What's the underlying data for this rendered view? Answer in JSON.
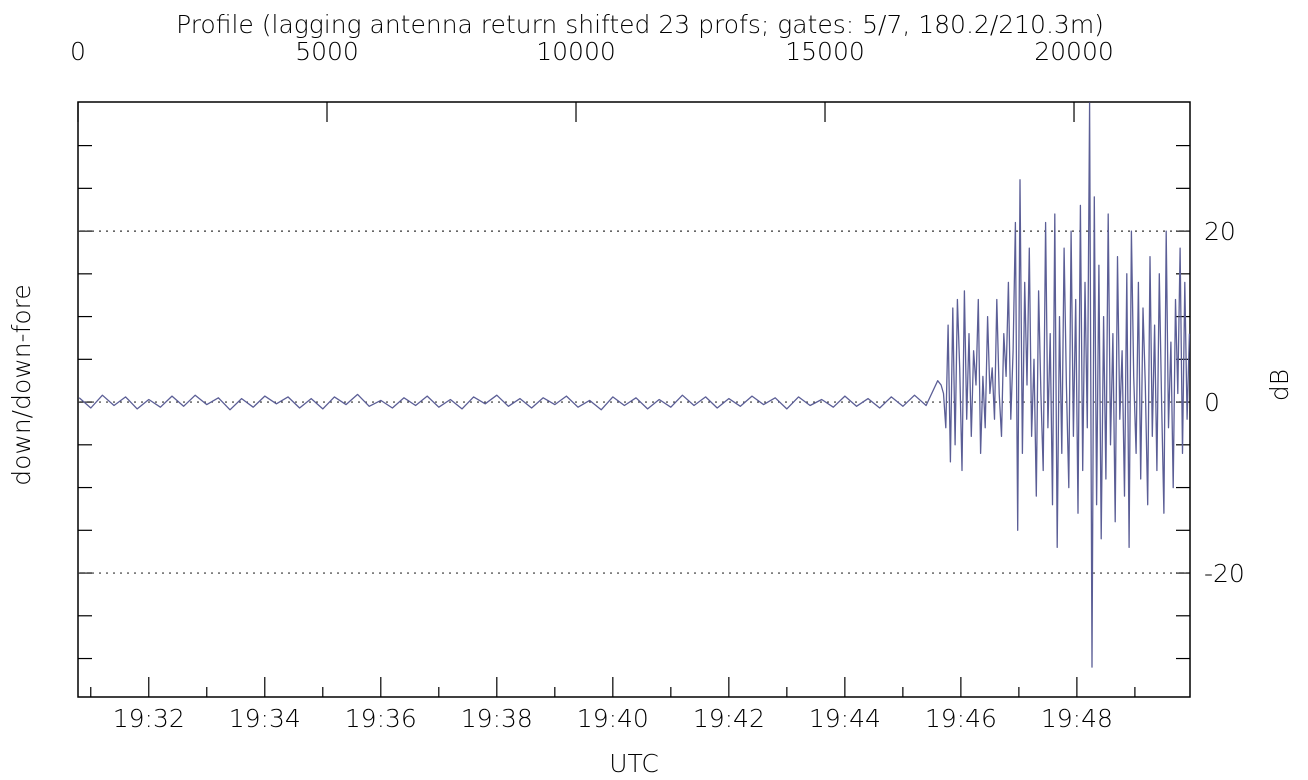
{
  "chart_data": {
    "type": "line",
    "title": "Profile (lagging antenna return shifted 23 profs; gates: 5/7, 180.2/210.3m)",
    "xlabel": "UTC",
    "ylabel": "down/down-fore",
    "y2label": "dB",
    "xlim": [
      1170.78,
      1189.95
    ],
    "xticks": [
      {
        "value": 1172,
        "label": "19:32"
      },
      {
        "value": 1174,
        "label": "19:34"
      },
      {
        "value": 1176,
        "label": "19:36"
      },
      {
        "value": 1178,
        "label": "19:38"
      },
      {
        "value": 1180,
        "label": "19:40"
      },
      {
        "value": 1182,
        "label": "19:42"
      },
      {
        "value": 1184,
        "label": "19:44"
      },
      {
        "value": 1186,
        "label": "19:46"
      },
      {
        "value": 1188,
        "label": "19:48"
      }
    ],
    "xminorticks": [
      1171,
      1173,
      1175,
      1177,
      1179,
      1181,
      1183,
      1185,
      1187,
      1189
    ],
    "x2lim": [
      0,
      22329
    ],
    "x2ticks": [
      0,
      5000,
      10000,
      15000,
      20000
    ],
    "ylim": [
      -34.5,
      35.1
    ],
    "yticks": [
      -20,
      0,
      20
    ],
    "yminorticks": [
      -30,
      -25,
      -20,
      -15,
      -10,
      -5,
      0,
      5,
      10,
      15,
      20,
      25,
      30
    ],
    "grid": true,
    "x": [
      1170.8,
      1171.0,
      1171.2,
      1171.4,
      1171.6,
      1171.8,
      1172.0,
      1172.2,
      1172.4,
      1172.6,
      1172.8,
      1173.0,
      1173.2,
      1173.4,
      1173.6,
      1173.8,
      1174.0,
      1174.2,
      1174.4,
      1174.6,
      1174.8,
      1175.0,
      1175.2,
      1175.4,
      1175.6,
      1175.8,
      1176.0,
      1176.2,
      1176.4,
      1176.6,
      1176.8,
      1177.0,
      1177.2,
      1177.4,
      1177.6,
      1177.8,
      1178.0,
      1178.2,
      1178.4,
      1178.6,
      1178.8,
      1179.0,
      1179.2,
      1179.4,
      1179.6,
      1179.8,
      1180.0,
      1180.2,
      1180.4,
      1180.6,
      1180.8,
      1181.0,
      1181.2,
      1181.4,
      1181.6,
      1181.8,
      1182.0,
      1182.2,
      1182.4,
      1182.6,
      1182.8,
      1183.0,
      1183.2,
      1183.4,
      1183.6,
      1183.8,
      1184.0,
      1184.2,
      1184.4,
      1184.6,
      1184.8,
      1185.0,
      1185.2,
      1185.4,
      1185.6,
      1185.66,
      1185.7,
      1185.74,
      1185.78,
      1185.82,
      1185.86,
      1185.9,
      1185.94,
      1185.98,
      1186.02,
      1186.06,
      1186.1,
      1186.14,
      1186.18,
      1186.22,
      1186.26,
      1186.3,
      1186.34,
      1186.38,
      1186.42,
      1186.46,
      1186.5,
      1186.54,
      1186.58,
      1186.62,
      1186.66,
      1186.7,
      1186.74,
      1186.78,
      1186.82,
      1186.86,
      1186.9,
      1186.94,
      1186.98,
      1187.02,
      1187.06,
      1187.1,
      1187.14,
      1187.18,
      1187.22,
      1187.26,
      1187.3,
      1187.34,
      1187.38,
      1187.42,
      1187.46,
      1187.5,
      1187.54,
      1187.58,
      1187.62,
      1187.66,
      1187.7,
      1187.74,
      1187.78,
      1187.82,
      1187.86,
      1187.9,
      1187.94,
      1187.98,
      1188.02,
      1188.06,
      1188.1,
      1188.14,
      1188.18,
      1188.22,
      1188.26,
      1188.3,
      1188.34,
      1188.38,
      1188.42,
      1188.46,
      1188.5,
      1188.54,
      1188.58,
      1188.62,
      1188.66,
      1188.7,
      1188.74,
      1188.78,
      1188.82,
      1188.86,
      1188.9,
      1188.94,
      1188.98,
      1189.02,
      1189.06,
      1189.1,
      1189.14,
      1189.18,
      1189.22,
      1189.26,
      1189.3,
      1189.34,
      1189.38,
      1189.42,
      1189.46,
      1189.5,
      1189.54,
      1189.58,
      1189.62,
      1189.66,
      1189.7,
      1189.74,
      1189.78,
      1189.82,
      1189.86,
      1189.9,
      1189.94
    ],
    "series": [
      {
        "color": "#5b5e96",
        "values": [
          0.5,
          -0.7,
          0.8,
          -0.4,
          0.6,
          -0.8,
          0.3,
          -0.6,
          0.7,
          -0.5,
          0.8,
          -0.3,
          0.5,
          -0.9,
          0.4,
          -0.6,
          0.7,
          -0.2,
          0.6,
          -0.7,
          0.4,
          -0.8,
          0.6,
          -0.3,
          0.9,
          -0.5,
          0.2,
          -0.7,
          0.5,
          -0.4,
          0.7,
          -0.6,
          0.3,
          -0.8,
          0.6,
          -0.2,
          0.8,
          -0.5,
          0.4,
          -0.7,
          0.5,
          -0.3,
          0.7,
          -0.6,
          0.2,
          -0.9,
          0.6,
          -0.4,
          0.5,
          -0.8,
          0.3,
          -0.6,
          0.8,
          -0.4,
          0.6,
          -0.7,
          0.4,
          -0.5,
          0.7,
          -0.3,
          0.5,
          -0.8,
          0.6,
          -0.4,
          0.3,
          -0.6,
          0.7,
          -0.5,
          0.4,
          -0.7,
          0.6,
          -0.5,
          0.8,
          -0.4,
          2.5,
          2,
          1,
          -3,
          9,
          -7,
          11,
          -5,
          12,
          4,
          -8,
          13,
          -2,
          8,
          -4,
          6,
          2,
          12,
          -6,
          3,
          -3,
          10,
          1,
          4,
          -2,
          12,
          1,
          -4,
          8,
          3,
          14,
          -2,
          6,
          21,
          -15,
          26,
          -6,
          14,
          2,
          18,
          -4,
          5,
          -11,
          13,
          1,
          -8,
          21,
          -3,
          8,
          -12,
          22,
          -17,
          10,
          -6,
          18,
          2,
          -10,
          20,
          -4,
          12,
          -13,
          23,
          -8,
          14,
          -3,
          35,
          -31,
          24,
          -12,
          16,
          -16,
          10,
          -9,
          22,
          -5,
          8,
          -14,
          17,
          -2,
          6,
          -11,
          15,
          -17,
          20,
          3,
          -6,
          14,
          -9,
          11,
          2,
          -12,
          17,
          -4,
          9,
          -8,
          15,
          0,
          -13,
          20,
          -3,
          7,
          -10,
          12,
          1,
          18,
          -6,
          14,
          -2,
          8
        ]
      }
    ]
  }
}
